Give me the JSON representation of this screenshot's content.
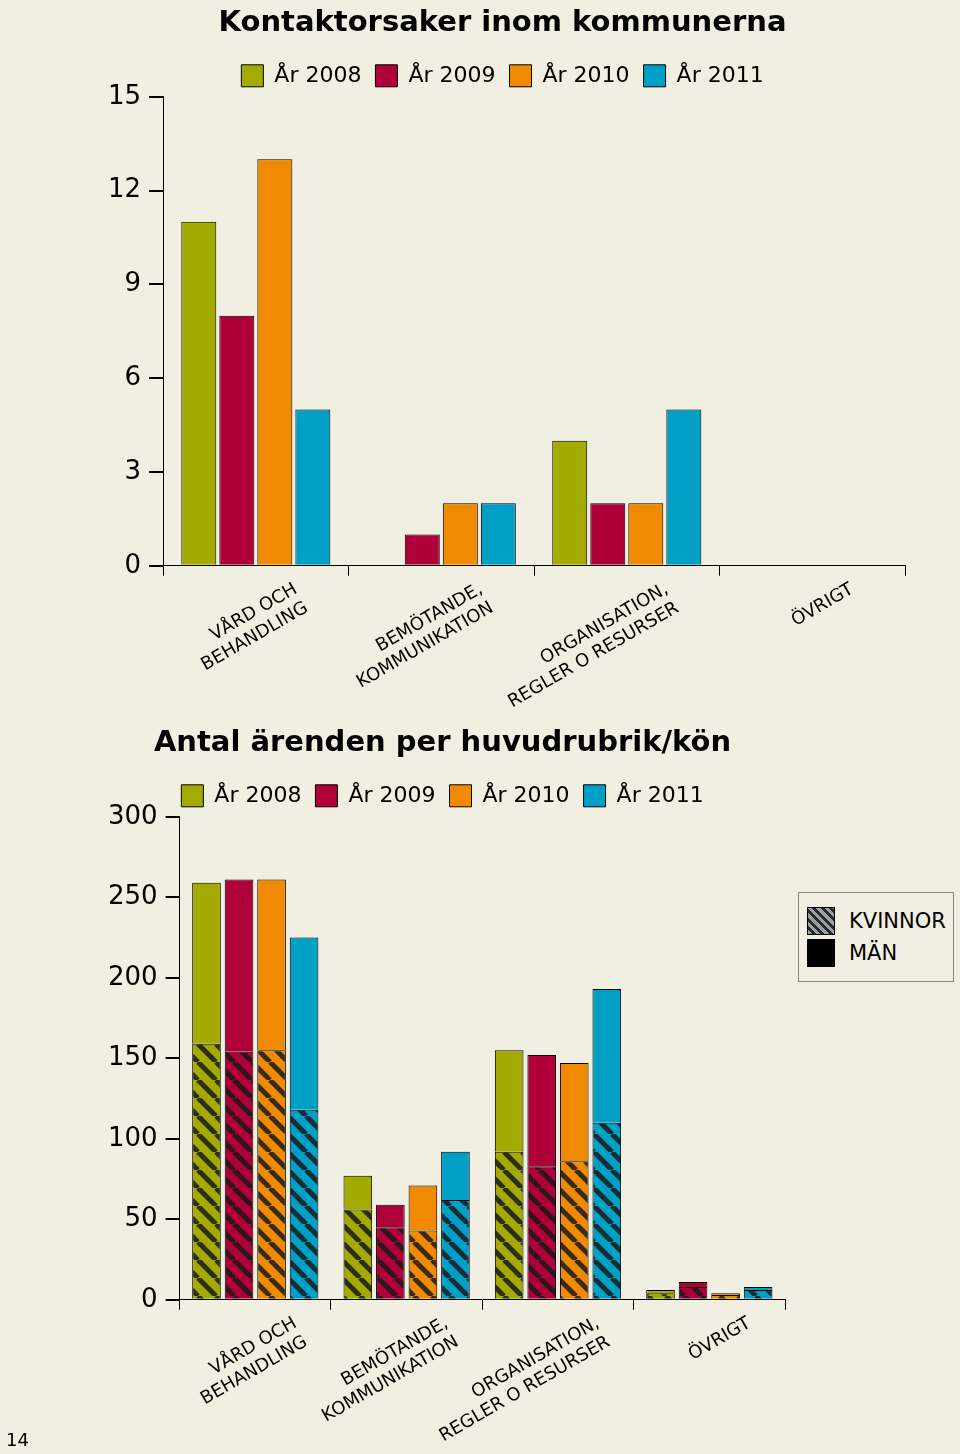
{
  "page_number": "14",
  "chart_data": [
    {
      "type": "bar",
      "title": "Kontaktorsaker inom kommunerna",
      "categories": [
        [
          "VÅRD OCH",
          "BEHANDLING"
        ],
        [
          "BEMÖTANDE,",
          "KOMMUNIKATION"
        ],
        [
          "ORGANISATION,",
          "REGLER O RESURSER"
        ],
        "ÖVRIGT"
      ],
      "series": [
        {
          "name": "År 2008",
          "color": "#a3ab00",
          "values": [
            11,
            0,
            4,
            0
          ]
        },
        {
          "name": "År 2009",
          "color": "#b0003a",
          "values": [
            8,
            1,
            2,
            0
          ]
        },
        {
          "name": "År 2010",
          "color": "#f08a00",
          "values": [
            13,
            2,
            2,
            0
          ]
        },
        {
          "name": "År 2011",
          "color": "#00a0c6",
          "values": [
            5,
            2,
            5,
            0
          ]
        }
      ],
      "ylim": [
        0,
        15
      ],
      "yticks": [
        0,
        3,
        6,
        9,
        12,
        15
      ],
      "grid": false,
      "legend": "top"
    },
    {
      "type": "bar",
      "title": "Antal ärenden per huvudrubrik/kön",
      "categories": [
        [
          "VÅRD OCH",
          "BEHANDLING"
        ],
        [
          "BEMÖTANDE,",
          "KOMMUNIKATION"
        ],
        [
          "ORGANISATION,",
          "REGLER O RESURSER"
        ],
        "ÖVRIGT"
      ],
      "stacked": true,
      "series": [
        {
          "name": "År 2008",
          "color": "#a3ab00",
          "segments": [
            {
              "name": "KVINNOR",
              "values": [
                159,
                56,
                92,
                4
              ]
            },
            {
              "name": "MÄN",
              "values": [
                100,
                21,
                63,
                2
              ]
            }
          ]
        },
        {
          "name": "År 2009",
          "color": "#b0003a",
          "segments": [
            {
              "name": "KVINNOR",
              "values": [
                154,
                45,
                83,
                8
              ]
            },
            {
              "name": "MÄN",
              "values": [
                107,
                14,
                69,
                3
              ]
            }
          ]
        },
        {
          "name": "År 2010",
          "color": "#f08a00",
          "segments": [
            {
              "name": "KVINNOR",
              "values": [
                155,
                43,
                86,
                3
              ]
            },
            {
              "name": "MÄN",
              "values": [
                106,
                28,
                61,
                1
              ]
            }
          ]
        },
        {
          "name": "År 2011",
          "color": "#00a0c6",
          "segments": [
            {
              "name": "KVINNOR",
              "values": [
                118,
                62,
                110,
                6
              ]
            },
            {
              "name": "MÄN",
              "values": [
                107,
                30,
                83,
                2
              ]
            }
          ]
        }
      ],
      "ylim": [
        0,
        300
      ],
      "yticks": [
        0,
        50,
        100,
        150,
        200,
        250,
        300
      ],
      "grid": false,
      "legend": "top"
    }
  ]
}
